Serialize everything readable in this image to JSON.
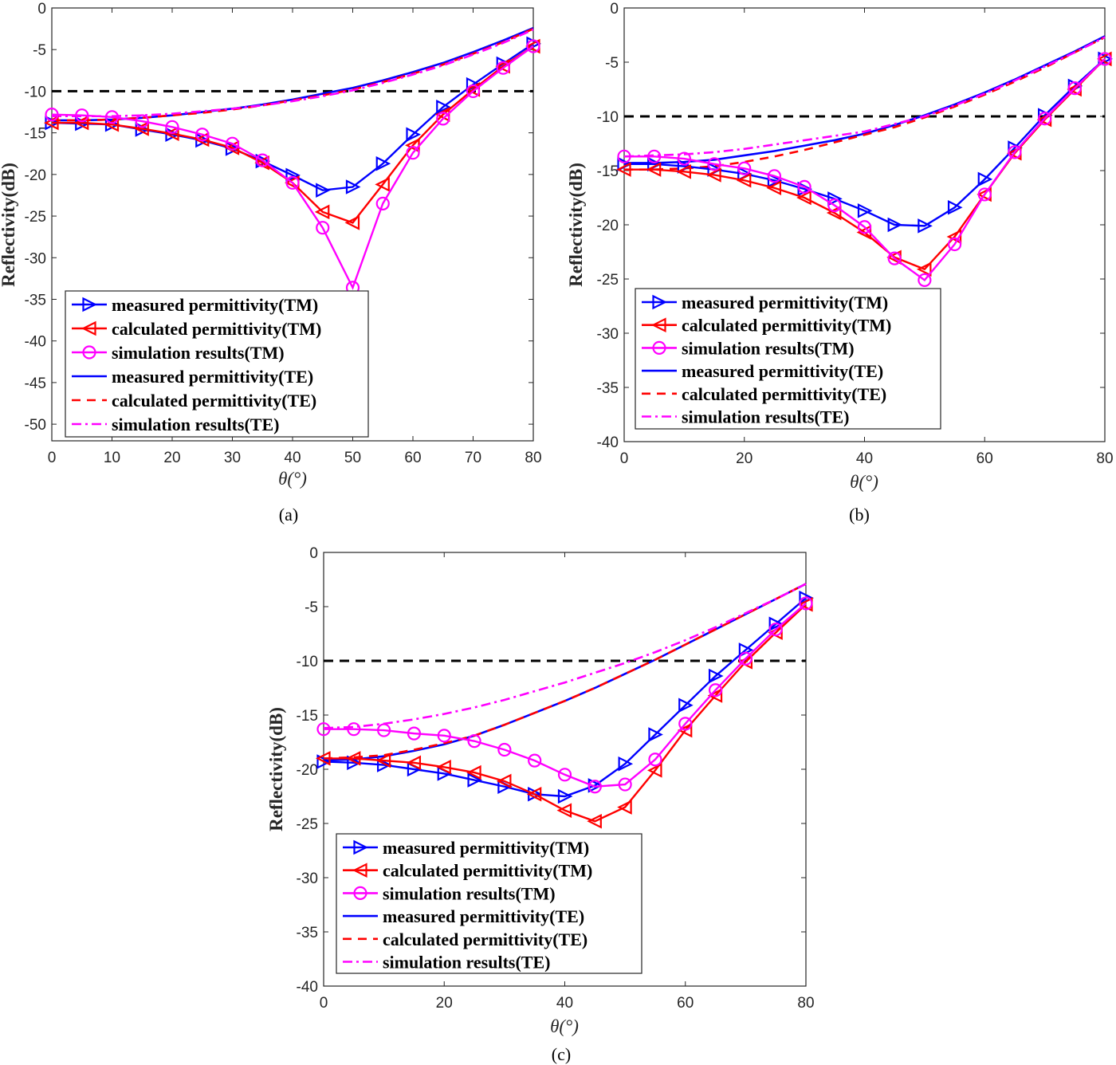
{
  "colors": {
    "measured": "#0000ff",
    "calculated": "#ff0000",
    "simulation": "#ff00ff",
    "threshold": "#000000"
  },
  "chart_data": [
    {
      "type": "line",
      "caption": "(a)",
      "xlabel": "θ(°)",
      "ylabel": "Reflectivity(dB)",
      "xlim": [
        0,
        80
      ],
      "ylim": [
        -52,
        0
      ],
      "x_ticks": [
        "0",
        "10",
        "20",
        "30",
        "40",
        "50",
        "60",
        "70",
        "80"
      ],
      "y_ticks": [
        "0",
        "-5",
        "-10",
        "-15",
        "-20",
        "-25",
        "-30",
        "-35",
        "-40",
        "-45",
        "-50"
      ],
      "grid": false,
      "legend_position": "bottom-left",
      "threshold": -10,
      "x": [
        0,
        5,
        10,
        15,
        20,
        25,
        30,
        35,
        40,
        45,
        50,
        55,
        60,
        65,
        70,
        75,
        80
      ],
      "series": [
        {
          "name": "measured permittivity(TM)",
          "color": "measured",
          "style": "solid",
          "marker": "triangle-right",
          "values": [
            -13.8,
            -13.9,
            -14.0,
            -14.6,
            -15.2,
            -15.9,
            -16.9,
            -18.4,
            -20.1,
            -21.9,
            -21.5,
            -18.7,
            -15.2,
            -11.9,
            -9.2,
            -6.7,
            -4.3
          ]
        },
        {
          "name": "calculated permittivity(TM)",
          "color": "calculated",
          "style": "solid",
          "marker": "triangle-left",
          "values": [
            -13.8,
            -13.8,
            -14.0,
            -14.5,
            -15.1,
            -15.8,
            -16.8,
            -18.6,
            -21.0,
            -24.5,
            -25.8,
            -21.2,
            -16.5,
            -12.8,
            -9.8,
            -7.0,
            -4.6
          ]
        },
        {
          "name": "simulation results(TM)",
          "color": "simulation",
          "style": "solid",
          "marker": "circle",
          "values": [
            -12.8,
            -12.9,
            -13.1,
            -13.6,
            -14.3,
            -15.2,
            -16.3,
            -18.3,
            -21.0,
            -26.4,
            -33.6,
            -23.5,
            -17.4,
            -13.3,
            -10.0,
            -7.2,
            -4.6
          ]
        },
        {
          "name": "measured permittivity(TE)",
          "color": "measured",
          "style": "solid",
          "marker": "none",
          "values": [
            -13.5,
            -13.5,
            -13.4,
            -13.2,
            -12.9,
            -12.5,
            -12.1,
            -11.6,
            -11.0,
            -10.3,
            -9.6,
            -8.7,
            -7.7,
            -6.6,
            -5.3,
            -3.9,
            -2.4
          ]
        },
        {
          "name": "calculated permittivity(TE)",
          "color": "calculated",
          "style": "dashed",
          "marker": "none",
          "values": [
            -13.5,
            -13.5,
            -13.4,
            -13.2,
            -12.9,
            -12.6,
            -12.2,
            -11.7,
            -11.1,
            -10.5,
            -9.8,
            -8.9,
            -7.9,
            -6.8,
            -5.5,
            -4.1,
            -2.5
          ]
        },
        {
          "name": "simulation results(TE)",
          "color": "simulation",
          "style": "dashdot",
          "marker": "none",
          "values": [
            -13.0,
            -13.0,
            -13.0,
            -12.9,
            -12.7,
            -12.4,
            -12.1,
            -11.7,
            -11.2,
            -10.6,
            -9.9,
            -9.0,
            -8.0,
            -6.9,
            -5.6,
            -4.2,
            -2.6
          ]
        }
      ]
    },
    {
      "type": "line",
      "caption": "(b)",
      "xlabel": "θ(°)",
      "ylabel": "Reflectivity(dB)",
      "xlim": [
        0,
        80
      ],
      "ylim": [
        -40,
        0
      ],
      "x_ticks": [
        "0",
        "20",
        "40",
        "60",
        "80"
      ],
      "y_ticks": [
        "0",
        "-5",
        "-10",
        "-15",
        "-20",
        "-25",
        "-30",
        "-35",
        "-40"
      ],
      "grid": false,
      "legend_position": "bottom-left",
      "threshold": -10,
      "x": [
        0,
        5,
        10,
        15,
        20,
        25,
        30,
        35,
        40,
        45,
        50,
        55,
        60,
        65,
        70,
        75,
        80
      ],
      "series": [
        {
          "name": "measured permittivity(TM)",
          "color": "measured",
          "style": "solid",
          "marker": "triangle-right",
          "values": [
            -14.4,
            -14.4,
            -14.6,
            -14.9,
            -15.3,
            -15.9,
            -16.7,
            -17.6,
            -18.7,
            -20.0,
            -20.1,
            -18.4,
            -15.8,
            -12.9,
            -9.9,
            -7.2,
            -4.7
          ]
        },
        {
          "name": "calculated permittivity(TM)",
          "color": "calculated",
          "style": "solid",
          "marker": "triangle-left",
          "values": [
            -14.9,
            -14.9,
            -15.1,
            -15.4,
            -15.9,
            -16.6,
            -17.5,
            -18.9,
            -20.7,
            -23.0,
            -24.1,
            -21.1,
            -17.2,
            -13.4,
            -10.3,
            -7.5,
            -4.7
          ]
        },
        {
          "name": "simulation results(TM)",
          "color": "simulation",
          "style": "solid",
          "marker": "circle",
          "values": [
            -13.7,
            -13.7,
            -13.9,
            -14.4,
            -14.8,
            -15.5,
            -16.5,
            -18.2,
            -20.2,
            -23.1,
            -25.1,
            -21.8,
            -17.2,
            -13.3,
            -10.2,
            -7.4,
            -4.7
          ]
        },
        {
          "name": "measured permittivity(TE)",
          "color": "measured",
          "style": "solid",
          "marker": "none",
          "values": [
            -14.3,
            -14.3,
            -14.2,
            -14.0,
            -13.6,
            -13.2,
            -12.7,
            -12.2,
            -11.6,
            -10.8,
            -9.9,
            -8.9,
            -7.8,
            -6.6,
            -5.3,
            -4.0,
            -2.6
          ]
        },
        {
          "name": "calculated permittivity(TE)",
          "color": "calculated",
          "style": "dashed",
          "marker": "none",
          "values": [
            -14.9,
            -14.9,
            -14.8,
            -14.6,
            -14.2,
            -13.7,
            -13.1,
            -12.4,
            -11.7,
            -11.0,
            -10.1,
            -9.1,
            -8.0,
            -6.8,
            -5.5,
            -4.1,
            -2.7
          ]
        },
        {
          "name": "simulation results(TE)",
          "color": "simulation",
          "style": "dashdot",
          "marker": "none",
          "values": [
            -13.7,
            -13.6,
            -13.5,
            -13.3,
            -13.0,
            -12.6,
            -12.2,
            -11.8,
            -11.4,
            -10.7,
            -10.0,
            -9.0,
            -7.9,
            -6.7,
            -5.4,
            -4.1,
            -2.7
          ]
        }
      ]
    },
    {
      "type": "line",
      "caption": "(c)",
      "xlabel": "θ(°)",
      "ylabel": "Reflectivity(dB)",
      "xlim": [
        0,
        80
      ],
      "ylim": [
        -40,
        0
      ],
      "x_ticks": [
        "0",
        "20",
        "40",
        "60",
        "80"
      ],
      "y_ticks": [
        "0",
        "-5",
        "-10",
        "-15",
        "-20",
        "-25",
        "-30",
        "-35",
        "-40"
      ],
      "grid": false,
      "legend_position": "bottom-left",
      "threshold": -10,
      "x": [
        0,
        5,
        10,
        15,
        20,
        25,
        30,
        35,
        40,
        45,
        50,
        55,
        60,
        65,
        70,
        75,
        80
      ],
      "series": [
        {
          "name": "measured permittivity(TM)",
          "color": "measured",
          "style": "solid",
          "marker": "triangle-right",
          "values": [
            -19.3,
            -19.4,
            -19.6,
            -20.0,
            -20.4,
            -21.0,
            -21.6,
            -22.3,
            -22.5,
            -21.5,
            -19.5,
            -16.8,
            -14.1,
            -11.4,
            -9.0,
            -6.6,
            -4.2
          ]
        },
        {
          "name": "calculated permittivity(TM)",
          "color": "calculated",
          "style": "solid",
          "marker": "triangle-left",
          "values": [
            -19.0,
            -19.0,
            -19.2,
            -19.4,
            -19.8,
            -20.3,
            -21.1,
            -22.3,
            -23.8,
            -24.8,
            -23.5,
            -20.1,
            -16.4,
            -13.2,
            -10.1,
            -7.4,
            -4.8
          ]
        },
        {
          "name": "simulation results(TM)",
          "color": "simulation",
          "style": "solid",
          "marker": "circle",
          "values": [
            -16.3,
            -16.3,
            -16.4,
            -16.7,
            -16.9,
            -17.4,
            -18.2,
            -19.2,
            -20.5,
            -21.6,
            -21.4,
            -19.1,
            -15.8,
            -12.7,
            -9.8,
            -7.1,
            -4.7
          ]
        },
        {
          "name": "measured permittivity(TE)",
          "color": "measured",
          "style": "solid",
          "marker": "none",
          "values": [
            -19.2,
            -19.1,
            -18.8,
            -18.3,
            -17.7,
            -16.9,
            -15.9,
            -14.8,
            -13.7,
            -12.5,
            -11.2,
            -9.9,
            -8.5,
            -7.1,
            -5.7,
            -4.3,
            -2.9
          ]
        },
        {
          "name": "calculated permittivity(TE)",
          "color": "calculated",
          "style": "dashed",
          "marker": "none",
          "values": [
            -19.0,
            -18.9,
            -18.7,
            -18.2,
            -17.6,
            -16.9,
            -15.9,
            -14.8,
            -13.7,
            -12.5,
            -11.2,
            -9.9,
            -8.5,
            -7.1,
            -5.7,
            -4.3,
            -2.9
          ]
        },
        {
          "name": "simulation results(TE)",
          "color": "simulation",
          "style": "dashdot",
          "marker": "none",
          "values": [
            -16.2,
            -16.1,
            -15.8,
            -15.4,
            -14.9,
            -14.3,
            -13.6,
            -12.8,
            -12.0,
            -11.1,
            -10.2,
            -9.2,
            -8.1,
            -6.9,
            -5.6,
            -4.3,
            -2.9
          ]
        }
      ]
    }
  ]
}
